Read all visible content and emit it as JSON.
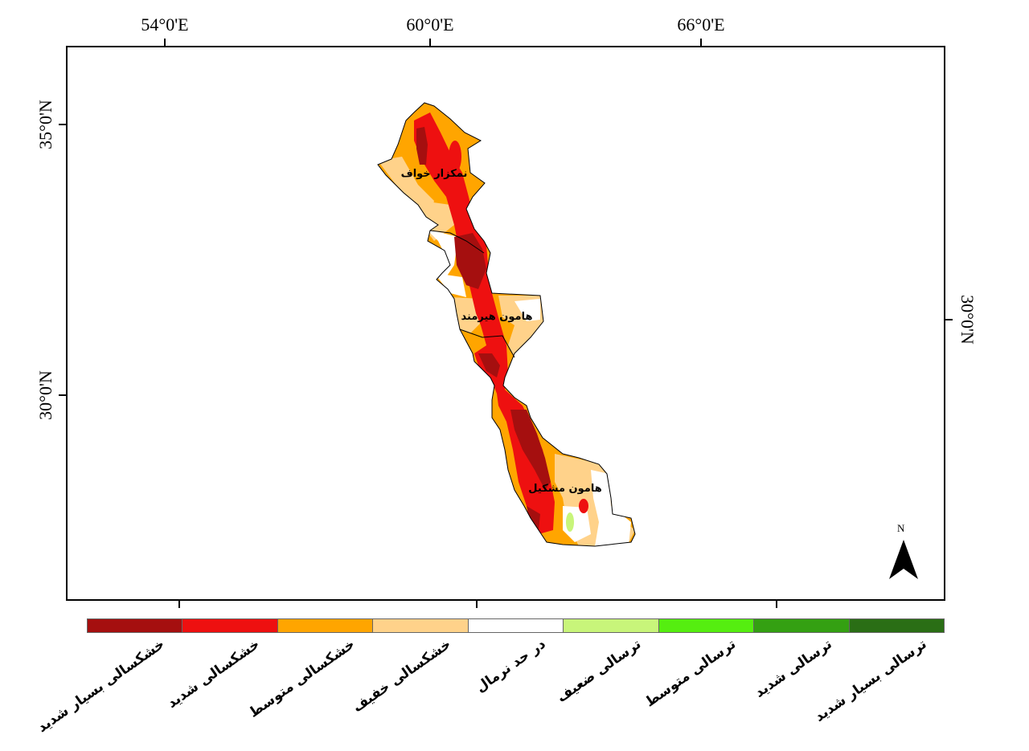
{
  "map": {
    "graticule": {
      "top_labels": [
        "54°0'E",
        "60°0'E",
        "66°0'E"
      ],
      "left_labels": [
        "35°0'N",
        "30°0'N"
      ],
      "right_labels": [
        "30°0'N"
      ]
    },
    "places": [
      {
        "id": "nemakzar-khaf",
        "label": "نمکزار خواف"
      },
      {
        "id": "hamoun-helmand",
        "label": "هامون هیرمند"
      },
      {
        "id": "hamoun-mashkel",
        "label": "هامون مشکیل"
      }
    ],
    "north_arrow": {
      "label": "N"
    }
  },
  "legend": {
    "items": [
      {
        "label": "خشکسالی بسیار شدید",
        "color": "#a50f0f"
      },
      {
        "label": "خشکسالی شدید",
        "color": "#ee1010"
      },
      {
        "label": "خشکسالی متوسط",
        "color": "#ffa500"
      },
      {
        "label": "خشکسالی خفیف",
        "color": "#ffd28a"
      },
      {
        "label": "در حد نرمال",
        "color": "#ffffff"
      },
      {
        "label": "ترسالی ضعیف",
        "color": "#c8f57a"
      },
      {
        "label": "ترسالی متوسط",
        "color": "#55ee10"
      },
      {
        "label": "ترسالی شدید",
        "color": "#34a012"
      },
      {
        "label": "ترسالی بسیار شدید",
        "color": "#2a6e15"
      }
    ]
  },
  "colors": {
    "very_severe": "#a50f0f",
    "severe": "#ee1010",
    "moderate": "#ffa500",
    "mild": "#ffd28a",
    "normal": "#ffffff",
    "weak_wet": "#c8f57a"
  }
}
